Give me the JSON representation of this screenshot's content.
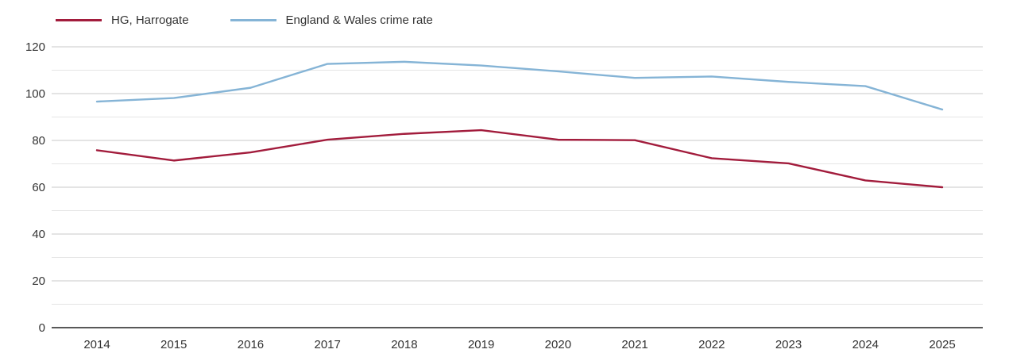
{
  "chart_data": {
    "type": "line",
    "x": [
      2014,
      2015,
      2016,
      2017,
      2018,
      2019,
      2020,
      2021,
      2022,
      2023,
      2024,
      2025
    ],
    "series": [
      {
        "name": "HG, Harrogate",
        "color": "#a21c3c",
        "values": [
          75.8,
          71.4,
          74.9,
          80.3,
          82.8,
          84.4,
          80.3,
          80.1,
          72.4,
          70.2,
          62.9,
          60.0
        ]
      },
      {
        "name": "England & Wales crime rate",
        "color": "#85b4d6",
        "values": [
          96.6,
          98.1,
          102.5,
          112.7,
          113.6,
          112.0,
          109.5,
          106.7,
          107.3,
          105.0,
          103.2,
          93.2
        ]
      }
    ],
    "title": "",
    "xlabel": "",
    "ylabel": "",
    "ylim": [
      0,
      120
    ],
    "y_tick_labels": [
      0,
      20,
      40,
      60,
      80,
      100,
      120
    ],
    "y_gridline_step": 10,
    "grid": true,
    "legend_position": "top-left"
  },
  "colors": {
    "axis_line": "#222222",
    "major_gridline": "#c9c9c9",
    "minor_gridline": "#e5e5e5",
    "text": "#333333",
    "background": "#ffffff"
  }
}
